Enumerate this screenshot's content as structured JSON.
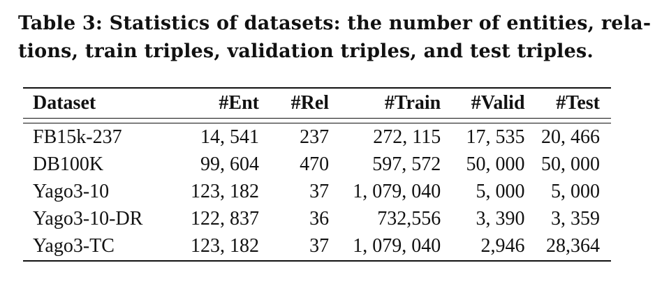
{
  "caption": {
    "line1": "Table 3: Statistics of datasets: the number of entities, rela-",
    "line2": "tions, train triples, validation triples, and test triples."
  },
  "table": {
    "headers": {
      "dataset": "Dataset",
      "ent": "#Ent",
      "rel": "#Rel",
      "train": "#Train",
      "valid": "#Valid",
      "test": "#Test"
    },
    "rows": [
      {
        "dataset": "FB15k-237",
        "ent": "14, 541",
        "rel": "237",
        "train": "272, 115",
        "valid": "17, 535",
        "test": "20, 466"
      },
      {
        "dataset": "DB100K",
        "ent": "99, 604",
        "rel": "470",
        "train": "597, 572",
        "valid": "50, 000",
        "test": "50, 000"
      },
      {
        "dataset": "Yago3-10",
        "ent": "123, 182",
        "rel": "37",
        "train": "1, 079, 040",
        "valid": "5, 000",
        "test": "5, 000"
      },
      {
        "dataset": "Yago3-10-DR",
        "ent": "122, 837",
        "rel": "36",
        "train": "732,556",
        "valid": "3, 390",
        "test": "3, 359"
      },
      {
        "dataset": "Yago3-TC",
        "ent": "123, 182",
        "rel": "37",
        "train": "1, 079, 040",
        "valid": "2,946",
        "test": "28,364"
      }
    ]
  }
}
